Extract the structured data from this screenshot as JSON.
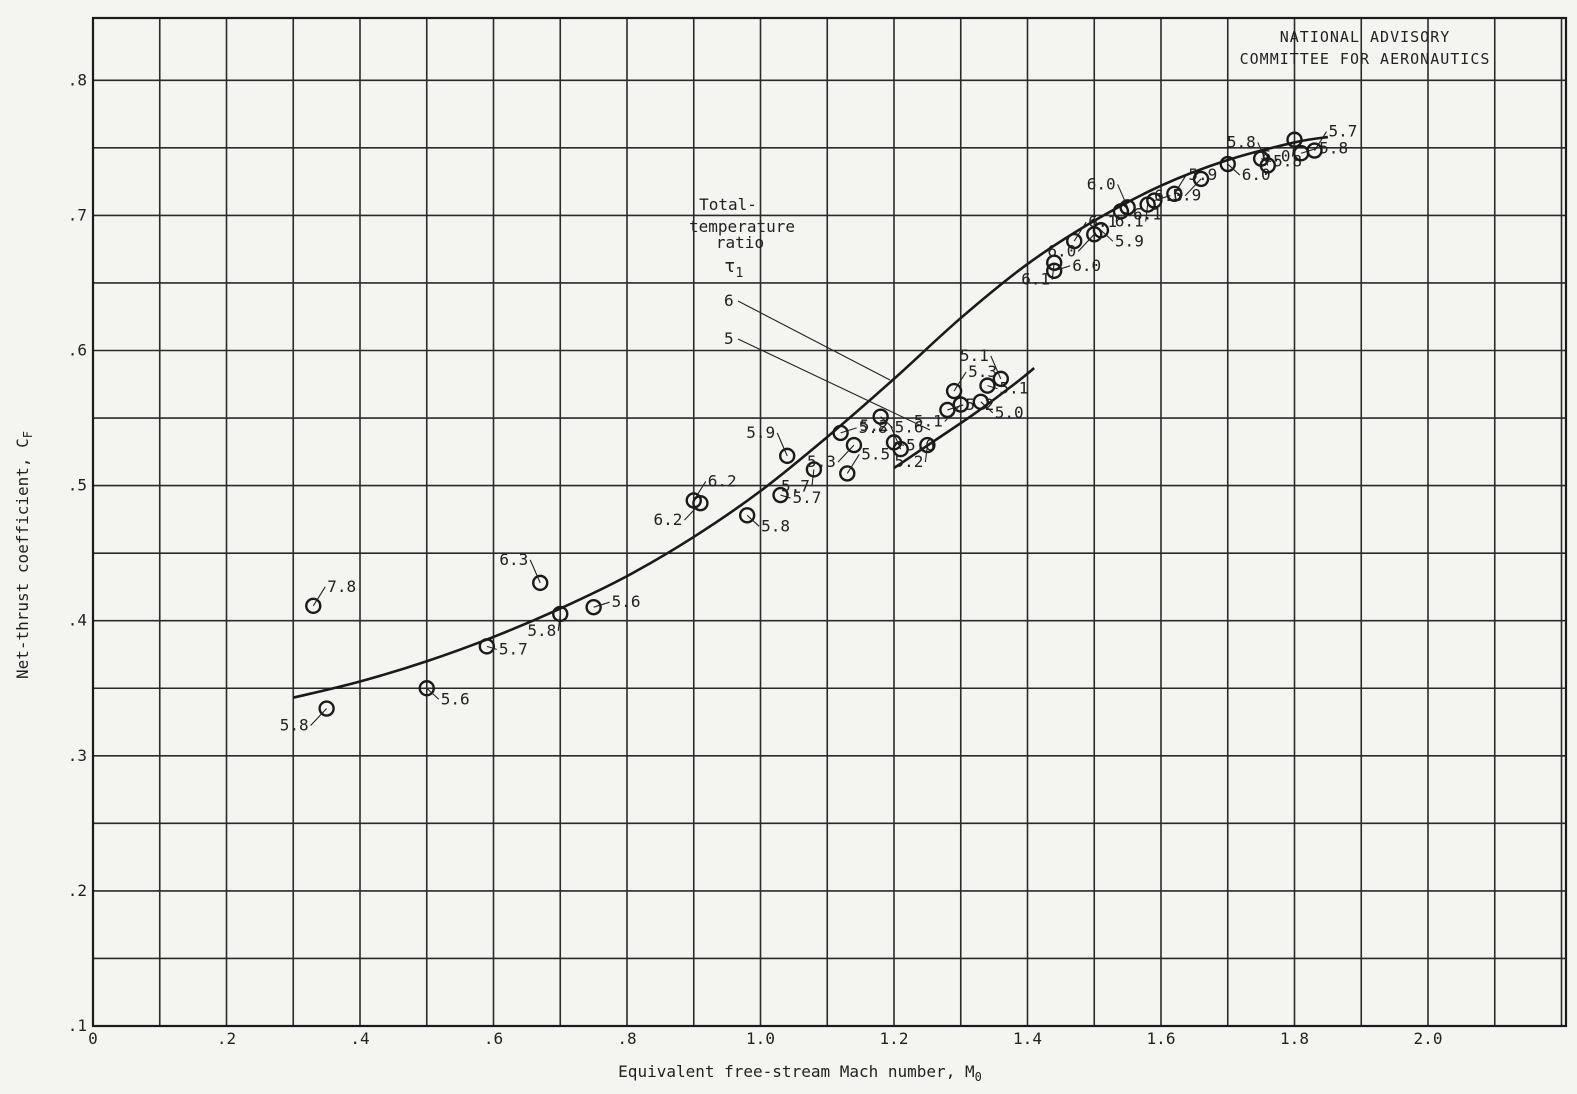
{
  "chart_data": {
    "type": "scatter",
    "title": "",
    "note": [
      "NATIONAL ADVISORY",
      "COMMITTEE FOR AERONAUTICS"
    ],
    "xlabel": "Equivalent free-stream Mach number, M",
    "xlabel_sub": "0",
    "ylabel": "Net-thrust coefficient, C",
    "ylabel_sub": "F",
    "xlim": [
      0,
      2.18
    ],
    "ylim": [
      0.1,
      0.85
    ],
    "xticks": [
      {
        "v": 0,
        "label": "0"
      },
      {
        "v": 0.2,
        "label": ".2"
      },
      {
        "v": 0.4,
        "label": ".4"
      },
      {
        "v": 0.6,
        "label": ".6"
      },
      {
        "v": 0.8,
        "label": ".8"
      },
      {
        "v": 1.0,
        "label": "1.0"
      },
      {
        "v": 1.2,
        "label": "1.2"
      },
      {
        "v": 1.4,
        "label": "1.4"
      },
      {
        "v": 1.6,
        "label": "1.6"
      },
      {
        "v": 1.8,
        "label": "1.8"
      },
      {
        "v": 2.0,
        "label": "2.0"
      }
    ],
    "yticks": [
      {
        "v": 0.1,
        "label": ".1"
      },
      {
        "v": 0.2,
        "label": ".2"
      },
      {
        "v": 0.3,
        "label": ".3"
      },
      {
        "v": 0.4,
        "label": ".4"
      },
      {
        "v": 0.5,
        "label": ".5"
      },
      {
        "v": 0.6,
        "label": ".6"
      },
      {
        "v": 0.7,
        "label": ".7"
      },
      {
        "v": 0.8,
        "label": ".8"
      }
    ],
    "grid": true,
    "legend": {
      "title": [
        "Total-",
        "temperature",
        "ratio"
      ],
      "symbol": "τ",
      "symbol_sub": "1",
      "curves": [
        "6",
        "5"
      ]
    },
    "curves": [
      {
        "name": "6",
        "x": [
          0.3,
          0.4,
          0.5,
          0.6,
          0.7,
          0.8,
          0.9,
          1.0,
          1.1,
          1.2,
          1.3,
          1.4,
          1.5,
          1.6,
          1.7,
          1.8,
          1.85
        ],
        "y": [
          0.343,
          0.355,
          0.37,
          0.388,
          0.409,
          0.433,
          0.462,
          0.496,
          0.536,
          0.579,
          0.624,
          0.664,
          0.696,
          0.722,
          0.741,
          0.754,
          0.758
        ]
      },
      {
        "name": "5",
        "x": [
          1.2,
          1.26,
          1.32,
          1.38,
          1.41
        ],
        "y": [
          0.513,
          0.533,
          0.553,
          0.575,
          0.587
        ]
      }
    ],
    "points": [
      {
        "x": 0.33,
        "y": 0.411,
        "label": "7.8"
      },
      {
        "x": 0.35,
        "y": 0.335,
        "label": "5.8"
      },
      {
        "x": 0.5,
        "y": 0.35,
        "label": "5.6"
      },
      {
        "x": 0.59,
        "y": 0.381,
        "label": "5.7"
      },
      {
        "x": 0.67,
        "y": 0.428,
        "label": "6.3"
      },
      {
        "x": 0.7,
        "y": 0.405,
        "label": "5.8"
      },
      {
        "x": 0.75,
        "y": 0.41,
        "label": "5.6"
      },
      {
        "x": 0.9,
        "y": 0.489,
        "label": "6.2"
      },
      {
        "x": 0.91,
        "y": 0.487,
        "label": "6.2"
      },
      {
        "x": 0.98,
        "y": 0.478,
        "label": "5.8"
      },
      {
        "x": 1.03,
        "y": 0.493,
        "label": "5.7"
      },
      {
        "x": 1.04,
        "y": 0.522,
        "label": "5.9"
      },
      {
        "x": 1.08,
        "y": 0.512,
        "label": "5.7"
      },
      {
        "x": 1.12,
        "y": 0.539,
        "label": "5.8"
      },
      {
        "x": 1.13,
        "y": 0.509,
        "label": "5.5"
      },
      {
        "x": 1.14,
        "y": 0.53,
        "label": "5.3"
      },
      {
        "x": 1.18,
        "y": 0.551,
        "label": "5.6"
      },
      {
        "x": 1.2,
        "y": 0.532,
        "label": "5.6"
      },
      {
        "x": 1.21,
        "y": 0.527,
        "label": "5.2"
      },
      {
        "x": 1.25,
        "y": 0.53,
        "label": "5.2"
      },
      {
        "x": 1.28,
        "y": 0.556,
        "label": "5.2"
      },
      {
        "x": 1.29,
        "y": 0.57,
        "label": "5.3"
      },
      {
        "x": 1.3,
        "y": 0.56,
        "label": "5.1"
      },
      {
        "x": 1.33,
        "y": 0.562,
        "label": "5.0"
      },
      {
        "x": 1.34,
        "y": 0.574,
        "label": "5.1"
      },
      {
        "x": 1.36,
        "y": 0.579,
        "label": "5.1"
      },
      {
        "x": 1.44,
        "y": 0.665,
        "label": "6.1"
      },
      {
        "x": 1.44,
        "y": 0.659,
        "label": "6.0"
      },
      {
        "x": 1.47,
        "y": 0.681,
        "label": "6.1"
      },
      {
        "x": 1.5,
        "y": 0.686,
        "label": "6.0"
      },
      {
        "x": 1.51,
        "y": 0.689,
        "label": "5.9"
      },
      {
        "x": 1.54,
        "y": 0.703,
        "label": "6.1"
      },
      {
        "x": 1.55,
        "y": 0.706,
        "label": "6.0"
      },
      {
        "x": 1.58,
        "y": 0.708,
        "label": "6.1"
      },
      {
        "x": 1.59,
        "y": 0.711,
        "label": "5.9"
      },
      {
        "x": 1.62,
        "y": 0.716,
        "label": "5.9"
      },
      {
        "x": 1.66,
        "y": 0.727,
        "label": "6.0"
      },
      {
        "x": 1.7,
        "y": 0.738,
        "label": "6.0"
      },
      {
        "x": 1.75,
        "y": 0.742,
        "label": "5.8"
      },
      {
        "x": 1.76,
        "y": 0.737,
        "label": "5.8"
      },
      {
        "x": 1.8,
        "y": 0.756,
        "label": "6.0"
      },
      {
        "x": 1.81,
        "y": 0.746,
        "label": "5.8"
      },
      {
        "x": 1.83,
        "y": 0.748,
        "label": "5.7"
      }
    ]
  }
}
